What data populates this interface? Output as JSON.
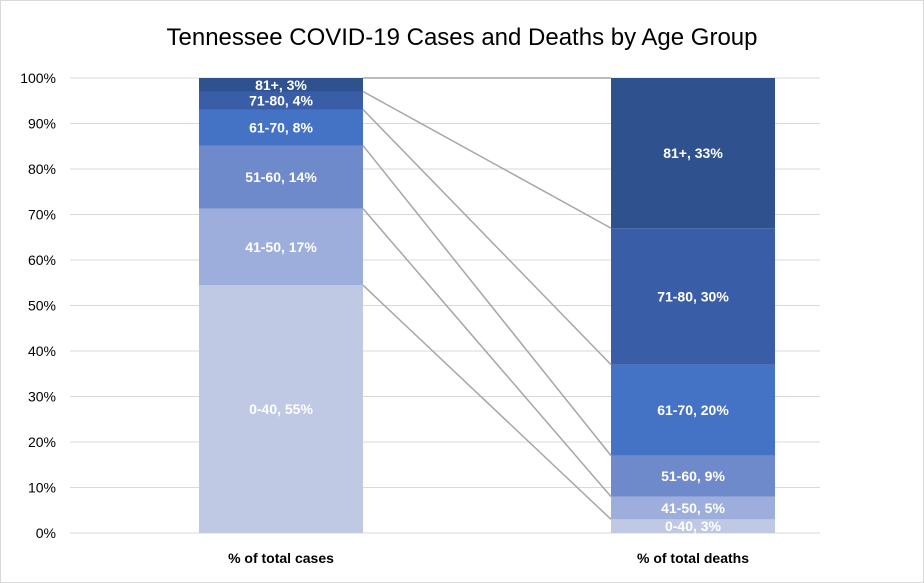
{
  "chart_data": {
    "type": "bar",
    "stacked": true,
    "percent_stacked": true,
    "title": "Tennessee  COVID-19 Cases and Deaths by Age Group",
    "categories": [
      "% of total cases",
      "% of total deaths"
    ],
    "yticks": [
      "0%",
      "10%",
      "20%",
      "30%",
      "40%",
      "50%",
      "60%",
      "70%",
      "80%",
      "90%",
      "100%"
    ],
    "ylim": [
      0,
      100
    ],
    "grid": true,
    "series": [
      {
        "name": "0-40",
        "values": [
          55,
          3
        ],
        "labels": [
          "0-40, 55%",
          "0-40, 3%"
        ],
        "color": "#BFC9E4"
      },
      {
        "name": "41-50",
        "values": [
          17,
          5
        ],
        "labels": [
          "41-50, 17%",
          "41-50, 5%"
        ],
        "color": "#9EAEDC"
      },
      {
        "name": "51-60",
        "values": [
          14,
          9
        ],
        "labels": [
          "51-60, 14%",
          "51-60, 9%"
        ],
        "color": "#6F8ACB"
      },
      {
        "name": "61-70",
        "values": [
          8,
          20
        ],
        "labels": [
          "61-70, 8%",
          "61-70, 20%"
        ],
        "color": "#4472C4"
      },
      {
        "name": "71-80",
        "values": [
          4,
          30
        ],
        "labels": [
          "71-80, 4%",
          "71-80, 30%"
        ],
        "color": "#3A5DA8"
      },
      {
        "name": "81+",
        "values": [
          3,
          33
        ],
        "labels": [
          "81+, 3%",
          "81+, 33%"
        ],
        "color": "#2F528F"
      }
    ],
    "series_lines": true
  }
}
